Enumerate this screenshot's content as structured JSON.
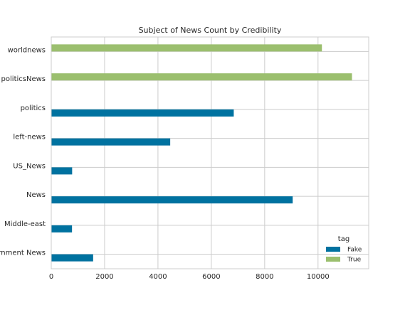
{
  "chart_data": {
    "type": "bar",
    "orientation": "horizontal",
    "title": "Subject of News Count by Credibility",
    "xlabel": "",
    "ylabel": "",
    "xlim": [
      0,
      11900
    ],
    "x_ticks": [
      0,
      2000,
      4000,
      6000,
      8000,
      10000
    ],
    "categories": [
      "worldnews",
      "politicsNews",
      "politics",
      "left-news",
      "US_News",
      "News",
      "Middle-east",
      "Government News"
    ],
    "series": [
      {
        "name": "Fake",
        "color": "#0072a0",
        "values": [
          null,
          null,
          6841,
          4459,
          783,
          9050,
          778,
          1570
        ]
      },
      {
        "name": "True",
        "color": "#9bbf6e",
        "values": [
          10145,
          11272,
          null,
          null,
          null,
          null,
          null,
          null
        ]
      }
    ],
    "legend": {
      "title": "tag",
      "position": "lower right",
      "entries": [
        "Fake",
        "True"
      ]
    },
    "grid": true,
    "style": {
      "background": "#ffffff",
      "grid_color": "#cccccc",
      "frame_color": "#cccccc",
      "text_color": "#262626"
    }
  }
}
